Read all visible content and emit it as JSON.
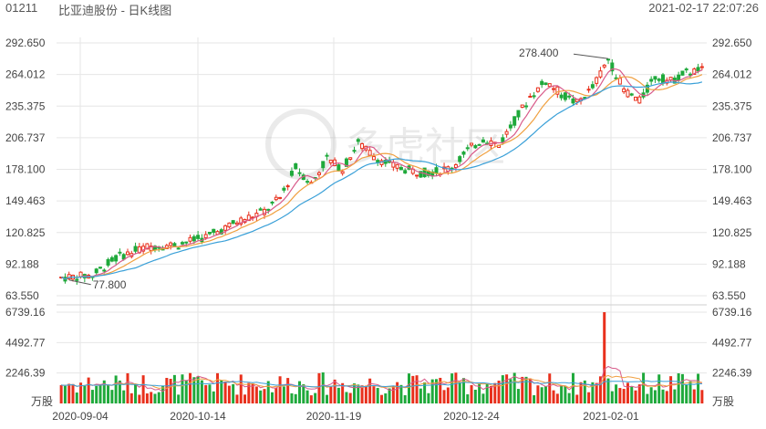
{
  "header": {
    "code": "01211",
    "title": "比亚迪股份 - 日K线图",
    "datetime": "2021-02-17 22:07:26"
  },
  "watermark": "多虎社区",
  "colors": {
    "up": "#e8301c",
    "down": "#1fa93b",
    "ma5": "#d85a8a",
    "ma10": "#f0a040",
    "ma20": "#3aa0d8",
    "grid": "#e6e6e6"
  },
  "price_axis": {
    "ticks": [
      "292.650",
      "264.012",
      "235.375",
      "206.737",
      "178.100",
      "149.463",
      "120.825",
      "92.188",
      "63.550"
    ]
  },
  "volume_axis": {
    "ticks": [
      "6739.16",
      "4492.77",
      "2246.39"
    ],
    "unit": "万股"
  },
  "x_axis": {
    "ticks": [
      "2020-09-04",
      "2020-10-14",
      "2020-11-19",
      "2020-12-24",
      "2021-02-01"
    ]
  },
  "annotations": {
    "high": "278.400",
    "low": "77.800"
  },
  "chart_data": {
    "type": "candlestick",
    "ylim": [
      63.55,
      292.65
    ],
    "volume_ylim": [
      0,
      6739.16
    ],
    "series": [
      {
        "name": "price",
        "note": "OHLC approximated from image"
      }
    ]
  }
}
